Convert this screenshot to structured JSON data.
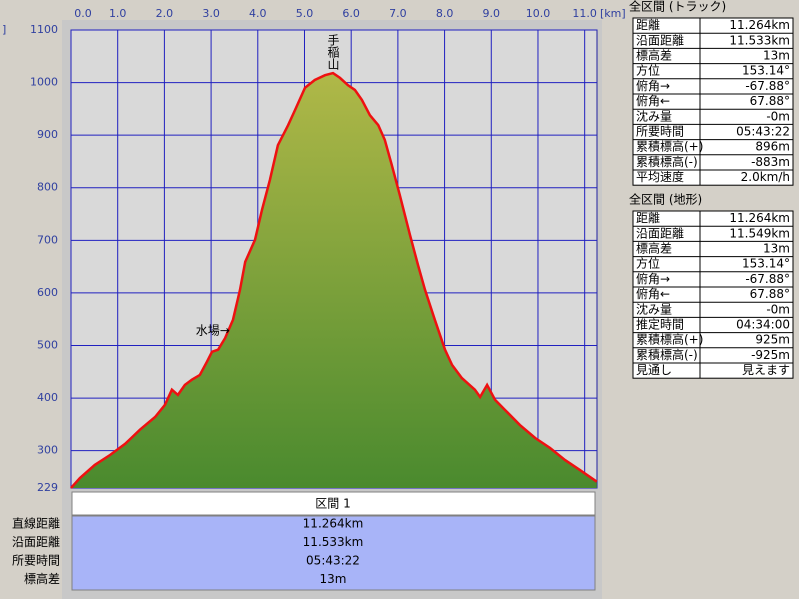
{
  "chart_data": {
    "type": "area",
    "y_unit_fragment": "]",
    "x_unit": "[km]",
    "x": [
      0,
      0.19,
      0.51,
      0.84,
      1.16,
      1.48,
      1.8,
      2.01,
      2.16,
      2.29,
      2.44,
      2.59,
      2.76,
      2.91,
      3.02,
      3.15,
      3.3,
      3.47,
      3.62,
      3.73,
      3.94,
      4.09,
      4.26,
      4.43,
      4.65,
      4.8,
      5.01,
      5.22,
      5.44,
      5.61,
      5.76,
      5.93,
      6.08,
      6.23,
      6.4,
      6.58,
      6.72,
      6.87,
      7.04,
      7.26,
      7.43,
      7.58,
      7.79,
      8.01,
      8.16,
      8.37,
      8.65,
      8.76,
      8.91,
      9.08,
      9.29,
      9.61,
      9.94,
      10.26,
      10.58,
      10.9,
      11.26
    ],
    "values": [
      229,
      248,
      273,
      292,
      313,
      340,
      364,
      387,
      416,
      406,
      425,
      435,
      444,
      469,
      488,
      492,
      514,
      549,
      606,
      659,
      701,
      758,
      815,
      881,
      919,
      948,
      990,
      1005,
      1014,
      1018,
      1009,
      995,
      986,
      967,
      938,
      919,
      891,
      843,
      786,
      710,
      653,
      606,
      549,
      492,
      463,
      438,
      416,
      402,
      425,
      397,
      378,
      349,
      324,
      305,
      282,
      263,
      241
    ],
    "color": "#ee1111",
    "xlim": [
      0,
      11.264
    ],
    "ylim": [
      229,
      1100
    ],
    "xticks": [
      {
        "value": 0,
        "label": "0.0"
      },
      {
        "value": 1,
        "label": "1.0"
      },
      {
        "value": 2,
        "label": "2.0"
      },
      {
        "value": 3,
        "label": "3.0"
      },
      {
        "value": 4,
        "label": "4.0"
      },
      {
        "value": 5,
        "label": "5.0"
      },
      {
        "value": 6,
        "label": "6.0"
      },
      {
        "value": 7,
        "label": "7.0"
      },
      {
        "value": 8,
        "label": "8.0"
      },
      {
        "value": 9,
        "label": "9.0"
      },
      {
        "value": 10,
        "label": "10.0"
      },
      {
        "value": 11,
        "label": "11.0"
      }
    ],
    "yticks": [
      229,
      300,
      400,
      500,
      600,
      700,
      800,
      900,
      1000,
      1100
    ],
    "grid": true,
    "annotations": [
      {
        "text": "手稲山",
        "x": 5.61,
        "y": 1018
      },
      {
        "text": "水場→",
        "x": 3.4,
        "y": 528
      }
    ]
  },
  "bottom_table": {
    "header": "区間 1",
    "rows": [
      [
        "直線距離",
        "11.264km"
      ],
      [
        "沿面距離",
        "11.533km"
      ],
      [
        "所要時間",
        "05:43:22"
      ],
      [
        "標高差",
        "13m"
      ]
    ]
  },
  "track_panel": {
    "title": "全区間 (トラック)",
    "rows": [
      [
        "距離",
        "11.264km"
      ],
      [
        "沿面距離",
        "11.533km"
      ],
      [
        "標高差",
        "13m"
      ],
      [
        "方位",
        "153.14°"
      ],
      [
        "俯角→",
        "-67.88°"
      ],
      [
        "俯角←",
        "67.88°"
      ],
      [
        "沈み量",
        "-0m"
      ],
      [
        "所要時間",
        "05:43:22"
      ],
      [
        "累積標高(+)",
        "896m"
      ],
      [
        "累積標高(-)",
        "-883m"
      ],
      [
        "平均速度",
        "2.0km/h"
      ]
    ]
  },
  "terrain_panel": {
    "title": "全区間 (地形)",
    "rows": [
      [
        "距離",
        "11.264km"
      ],
      [
        "沿面距離",
        "11.549km"
      ],
      [
        "標高差",
        "13m"
      ],
      [
        "方位",
        "153.14°"
      ],
      [
        "俯角→",
        "-67.88°"
      ],
      [
        "俯角←",
        "67.88°"
      ],
      [
        "沈み量",
        "-0m"
      ],
      [
        "推定時間",
        "04:34:00"
      ],
      [
        "累積標高(+)",
        "925m"
      ],
      [
        "累積標高(-)",
        "-925m"
      ],
      [
        "見通し",
        "見えます"
      ]
    ]
  }
}
